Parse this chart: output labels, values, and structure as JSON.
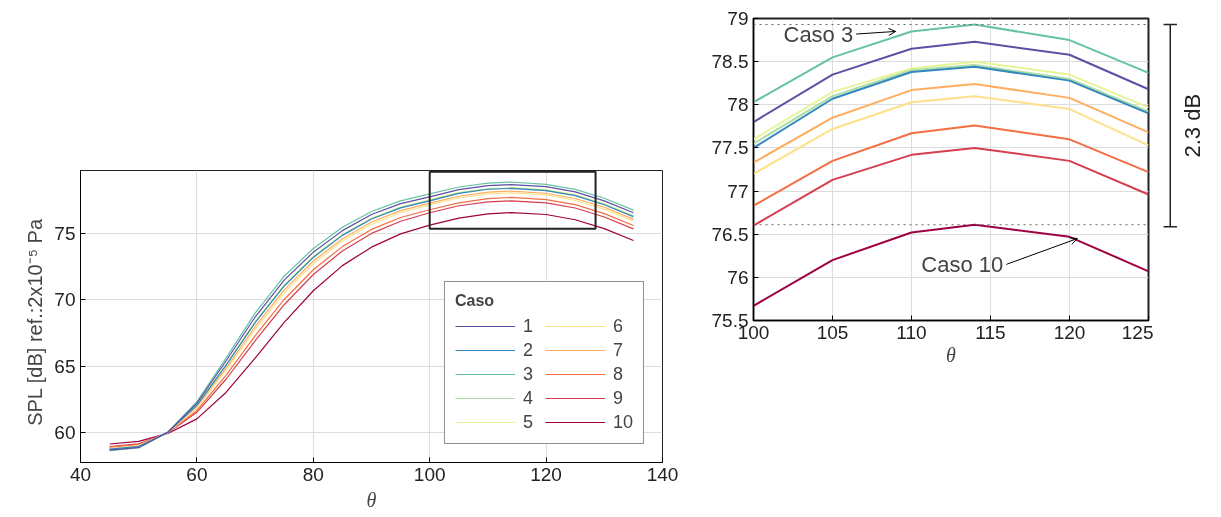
{
  "chart_data": [
    {
      "type": "line",
      "xlabel": "θ",
      "ylabel": "SPL [dB]   ref.:2x10⁻⁵ Pa",
      "legend_title": "Caso",
      "legend": "bottom right",
      "grid": true,
      "x": [
        45,
        50,
        55,
        60,
        65,
        70,
        75,
        80,
        85,
        90,
        95,
        100,
        105,
        110,
        114,
        120,
        125,
        130,
        135
      ],
      "xlim": [
        40,
        140
      ],
      "xticks": [
        40,
        60,
        80,
        100,
        120,
        140
      ],
      "ylim": [
        57.7,
        79.8
      ],
      "yticks": [
        60,
        65,
        70,
        75
      ],
      "series": [
        {
          "name": "1",
          "color": "#5e4fa2",
          "values": [
            58.64,
            58.84,
            59.99,
            62.19,
            65.38,
            68.71,
            71.5,
            73.62,
            75.25,
            76.47,
            77.29,
            77.8,
            78.35,
            78.65,
            78.73,
            78.58,
            78.18,
            77.5,
            76.6
          ]
        },
        {
          "name": "2",
          "color": "#3288bd",
          "values": [
            58.71,
            58.91,
            59.98,
            62.03,
            65.05,
            68.28,
            71.06,
            73.22,
            74.89,
            76.13,
            76.97,
            77.5,
            78.07,
            78.38,
            78.44,
            78.28,
            77.9,
            77.21,
            76.31
          ]
        },
        {
          "name": "3",
          "color": "#66c2a5",
          "values": [
            58.6,
            58.8,
            60.0,
            62.3,
            65.6,
            69.0,
            71.8,
            73.9,
            75.5,
            76.7,
            77.5,
            78.03,
            78.55,
            78.85,
            78.93,
            78.75,
            78.37,
            77.7,
            76.8
          ]
        },
        {
          "name": "4",
          "color": "#abdda4",
          "values": [
            58.7,
            58.9,
            59.98,
            62.04,
            65.07,
            68.31,
            71.09,
            73.25,
            74.91,
            76.15,
            76.99,
            77.55,
            78.1,
            78.4,
            78.46,
            78.3,
            77.92,
            77.23,
            76.33
          ]
        },
        {
          "name": "5",
          "color": "#e6f598",
          "values": [
            58.69,
            58.89,
            59.98,
            62.06,
            65.12,
            68.37,
            71.15,
            73.31,
            74.96,
            76.2,
            77.04,
            77.6,
            78.15,
            78.42,
            78.5,
            78.35,
            77.97,
            77.27,
            76.37
          ]
        },
        {
          "name": "6",
          "color": "#fee08b",
          "values": [
            58.78,
            58.98,
            59.96,
            61.83,
            64.67,
            67.78,
            70.55,
            72.75,
            74.46,
            75.73,
            76.6,
            77.2,
            77.72,
            78.03,
            78.1,
            77.95,
            77.53,
            76.88,
            75.98
          ]
        },
        {
          "name": "7",
          "color": "#fdae61",
          "values": [
            58.75,
            58.95,
            59.97,
            61.91,
            64.83,
            67.99,
            70.76,
            72.95,
            74.64,
            75.9,
            76.76,
            77.33,
            77.85,
            78.17,
            78.24,
            78.08,
            77.68,
            77.02,
            76.12
          ]
        },
        {
          "name": "8",
          "color": "#f46d43",
          "values": [
            58.85,
            59.05,
            59.95,
            61.64,
            64.29,
            67.29,
            70.04,
            72.29,
            74.04,
            75.34,
            76.24,
            76.83,
            77.35,
            77.67,
            77.76,
            77.6,
            77.22,
            76.54,
            75.64
          ]
        },
        {
          "name": "9",
          "color": "#d53e4f",
          "values": [
            58.91,
            59.11,
            59.94,
            61.5,
            64.0,
            66.91,
            69.64,
            71.93,
            73.71,
            75.04,
            75.96,
            76.6,
            77.13,
            77.42,
            77.5,
            77.35,
            76.96,
            76.28,
            75.38
          ]
        },
        {
          "name": "10",
          "color": "#9e0142",
          "values": [
            59.1,
            59.3,
            59.9,
            61.0,
            63.0,
            65.6,
            68.3,
            70.7,
            72.6,
            74.0,
            75.0,
            75.67,
            76.2,
            76.52,
            76.61,
            76.47,
            76.07,
            75.4,
            74.5
          ]
        }
      ]
    },
    {
      "type": "line",
      "xlabel": "θ",
      "grid": true,
      "x": [
        100,
        105,
        110,
        114,
        120,
        125
      ],
      "xlim": [
        100,
        125
      ],
      "xticks": [
        100,
        105,
        110,
        115,
        120,
        125
      ],
      "ylim": [
        75.5,
        79
      ],
      "yticks": [
        75.5,
        76,
        76.5,
        77,
        77.5,
        78,
        78.5,
        79
      ],
      "series": [
        {
          "color": "#5e4fa2",
          "values": [
            77.8,
            78.35,
            78.65,
            78.73,
            78.58,
            78.18
          ]
        },
        {
          "color": "#3288bd",
          "values": [
            77.5,
            78.07,
            78.38,
            78.44,
            78.28,
            77.9
          ]
        },
        {
          "color": "#66c2a5",
          "values": [
            78.03,
            78.55,
            78.85,
            78.93,
            78.75,
            78.37
          ]
        },
        {
          "color": "#abdda4",
          "values": [
            77.55,
            78.1,
            78.4,
            78.46,
            78.3,
            77.92
          ]
        },
        {
          "color": "#e6f598",
          "values": [
            77.6,
            78.15,
            78.42,
            78.5,
            78.35,
            77.97
          ]
        },
        {
          "color": "#fee08b",
          "values": [
            77.2,
            77.72,
            78.03,
            78.1,
            77.95,
            77.53
          ]
        },
        {
          "color": "#fdae61",
          "values": [
            77.33,
            77.85,
            78.17,
            78.24,
            78.08,
            77.68
          ]
        },
        {
          "color": "#f46d43",
          "values": [
            76.83,
            77.35,
            77.67,
            77.76,
            77.6,
            77.22
          ]
        },
        {
          "color": "#d53e4f",
          "values": [
            76.6,
            77.13,
            77.42,
            77.5,
            77.35,
            76.96
          ]
        },
        {
          "color": "#9e0142",
          "values": [
            75.67,
            76.2,
            76.52,
            76.61,
            76.47,
            76.07
          ]
        }
      ],
      "ref_lines": [
        {
          "axis": "y",
          "value": 78.93,
          "line_style": "dotted"
        },
        {
          "axis": "y",
          "value": 76.61,
          "line_style": "dotted"
        }
      ],
      "annotations": [
        {
          "text": "Caso 3",
          "x": 109,
          "y": 78.85
        },
        {
          "text": "Caso 10",
          "x": 120.5,
          "y": 76.45
        },
        "2.3 dB"
      ]
    }
  ]
}
